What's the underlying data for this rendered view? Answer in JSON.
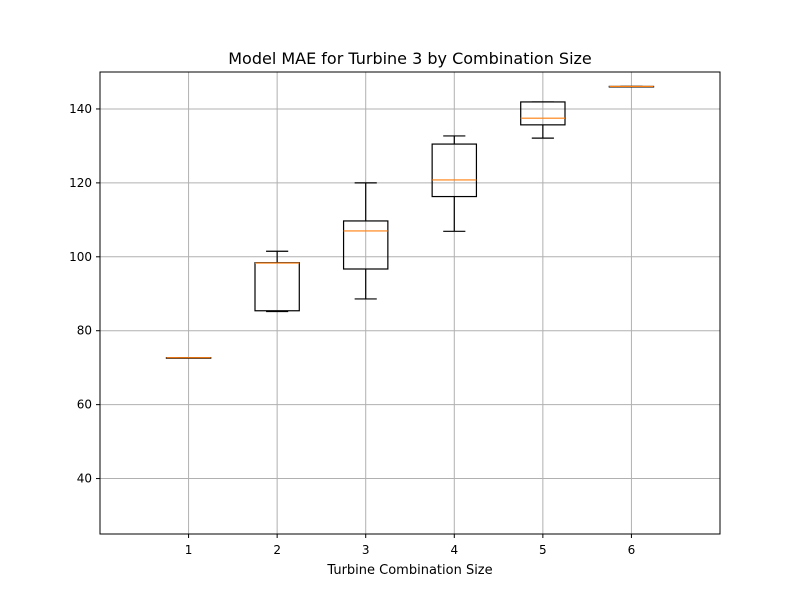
{
  "chart_data": {
    "type": "box",
    "title": "Model MAE for Turbine 3 by Combination Size",
    "xlabel": "Turbine Combination Size",
    "ylabel": "",
    "categories": [
      "1",
      "2",
      "3",
      "4",
      "5",
      "6"
    ],
    "ylim": [
      25,
      150
    ],
    "xlim": [
      0,
      7
    ],
    "yticks": [
      40,
      60,
      80,
      100,
      120,
      140
    ],
    "grid": true,
    "boxes": [
      {
        "category": "1",
        "whisker_low": 72.7,
        "q1": 72.7,
        "median": 72.7,
        "q3": 72.7,
        "whisker_high": 72.7
      },
      {
        "category": "2",
        "whisker_low": 85.2,
        "q1": 85.4,
        "median": 98.3,
        "q3": 98.4,
        "whisker_high": 101.5
      },
      {
        "category": "3",
        "whisker_low": 88.6,
        "q1": 96.7,
        "median": 107.0,
        "q3": 109.7,
        "whisker_high": 120.0
      },
      {
        "category": "4",
        "whisker_low": 106.9,
        "q1": 116.3,
        "median": 120.8,
        "q3": 130.5,
        "whisker_high": 132.7
      },
      {
        "category": "5",
        "whisker_low": 132.1,
        "q1": 135.7,
        "median": 137.5,
        "q3": 141.9,
        "whisker_high": 141.9
      },
      {
        "category": "6",
        "whisker_low": 146.1,
        "q1": 146.1,
        "median": 146.1,
        "q3": 146.1,
        "whisker_high": 146.1
      }
    ],
    "colors": {
      "box": "#000000",
      "median": "#ff7f0e",
      "grid": "#b0b0b0",
      "axis": "#000000"
    }
  }
}
